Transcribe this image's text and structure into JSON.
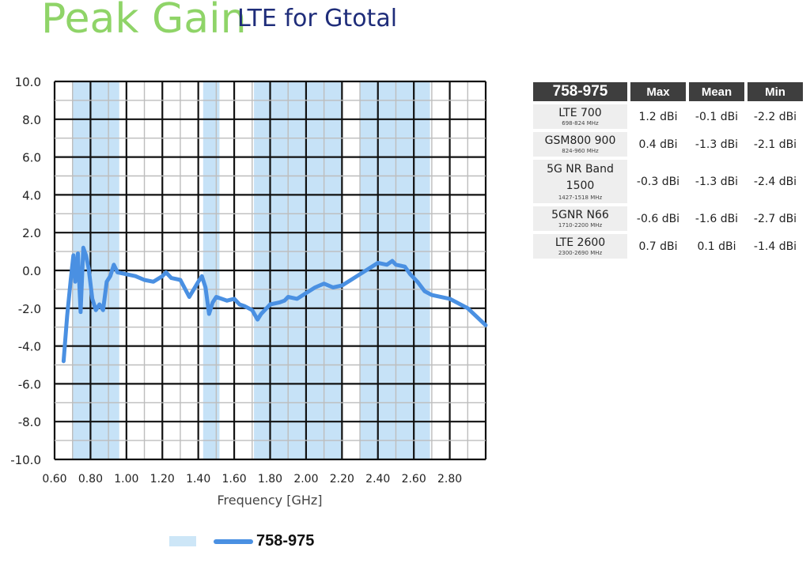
{
  "header": {
    "title": "Peak Gain",
    "subtitle": "LTE for Gtotal"
  },
  "stats_table": {
    "band_header": "758-975",
    "columns": [
      "Max",
      "Mean",
      "Min"
    ],
    "rows": [
      {
        "band": "LTE 700",
        "range": "698-824 MHz",
        "max": "1.2 dBi",
        "mean": "-0.1 dBi",
        "min": "-2.2 dBi"
      },
      {
        "band": "GSM800 900",
        "range": "824-960 MHz",
        "max": "0.4 dBi",
        "mean": "-1.3 dBi",
        "min": "-2.1 dBi"
      },
      {
        "band": "5G NR Band 1500",
        "range": "1427-1518 MHz",
        "max": "-0.3 dBi",
        "mean": "-1.3 dBi",
        "min": "-2.4 dBi"
      },
      {
        "band": "5GNR N66",
        "range": "1710-2200 MHz",
        "max": "-0.6 dBi",
        "mean": "-1.6 dBi",
        "min": "-2.7 dBi"
      },
      {
        "band": "LTE 2600",
        "range": "2300-2690 MHz",
        "max": "0.7 dBi",
        "mean": "0.1 dBi",
        "min": "-1.4 dBi"
      }
    ]
  },
  "legend": {
    "label": "758-975"
  },
  "colors": {
    "line": "#4a90e2",
    "band_shade": "#c6e2f7",
    "title": "#8fd468",
    "subtitle": "#1f2d7a",
    "header_bg": "#3e3e3e"
  },
  "chart_data": {
    "type": "line",
    "xlabel": "Frequency [GHz]",
    "ylabel": "",
    "xlim": [
      0.6,
      3.0
    ],
    "ylim": [
      -10,
      10
    ],
    "x_ticks": [
      "0.60",
      "0.80",
      "1.00",
      "1.20",
      "1.40",
      "1.60",
      "1.80",
      "2.00",
      "2.20",
      "2.40",
      "2.60",
      "2.80"
    ],
    "y_ticks": [
      "10.0",
      "8.0",
      "6.0",
      "4.0",
      "2.0",
      "0.0",
      "-2.0",
      "-4.0",
      "-6.0",
      "-8.0",
      "-10.0"
    ],
    "grid": true,
    "shaded_bands": [
      [
        0.698,
        0.96
      ],
      [
        1.427,
        1.518
      ],
      [
        1.71,
        2.2
      ],
      [
        2.3,
        2.69
      ]
    ],
    "series": [
      {
        "name": "758-975",
        "x": [
          0.65,
          0.67,
          0.69,
          0.705,
          0.715,
          0.73,
          0.745,
          0.76,
          0.775,
          0.79,
          0.81,
          0.83,
          0.85,
          0.87,
          0.89,
          0.91,
          0.93,
          0.95,
          1.0,
          1.05,
          1.1,
          1.15,
          1.2,
          1.22,
          1.25,
          1.3,
          1.35,
          1.4,
          1.42,
          1.44,
          1.46,
          1.48,
          1.5,
          1.53,
          1.56,
          1.6,
          1.63,
          1.66,
          1.7,
          1.73,
          1.75,
          1.78,
          1.8,
          1.85,
          1.88,
          1.9,
          1.95,
          2.0,
          2.05,
          2.1,
          2.15,
          2.2,
          2.25,
          2.3,
          2.35,
          2.4,
          2.45,
          2.48,
          2.5,
          2.55,
          2.58,
          2.62,
          2.66,
          2.7,
          2.8,
          2.9,
          3.0
        ],
        "y": [
          -4.8,
          -2.4,
          -0.5,
          0.8,
          -0.6,
          0.9,
          -2.2,
          1.2,
          0.8,
          0.1,
          -1.5,
          -2.1,
          -1.8,
          -2.1,
          -0.6,
          -0.3,
          0.3,
          -0.1,
          -0.2,
          -0.3,
          -0.5,
          -0.6,
          -0.3,
          -0.1,
          -0.4,
          -0.5,
          -1.4,
          -0.6,
          -0.3,
          -0.9,
          -2.3,
          -1.7,
          -1.4,
          -1.5,
          -1.6,
          -1.5,
          -1.8,
          -1.9,
          -2.1,
          -2.6,
          -2.3,
          -2.0,
          -1.8,
          -1.7,
          -1.6,
          -1.4,
          -1.5,
          -1.2,
          -0.9,
          -0.7,
          -0.9,
          -0.8,
          -0.5,
          -0.2,
          0.1,
          0.4,
          0.3,
          0.5,
          0.3,
          0.2,
          -0.2,
          -0.6,
          -1.1,
          -1.3,
          -1.5,
          -2.0,
          -2.9
        ]
      }
    ]
  }
}
